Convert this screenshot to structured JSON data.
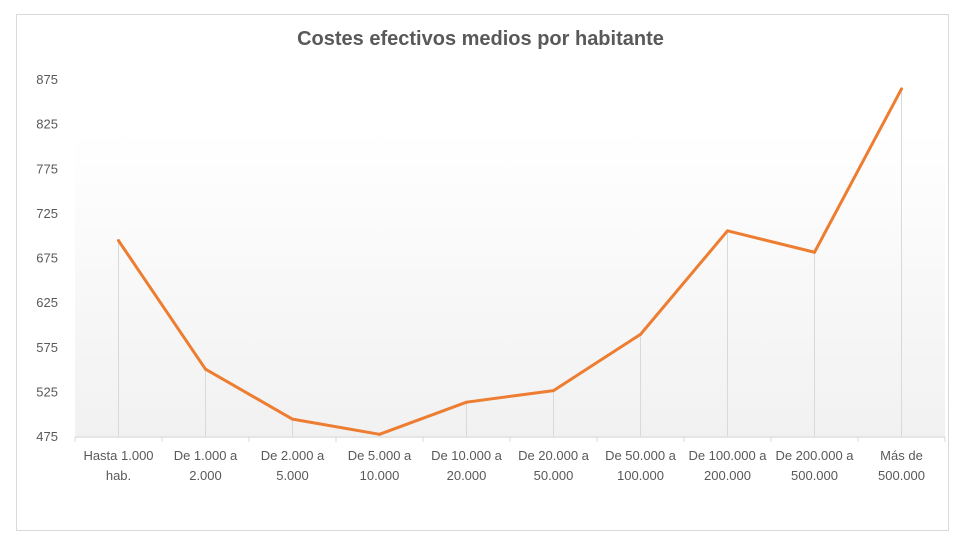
{
  "chart_data": {
    "type": "line",
    "title": "Costes efectivos medios por habitante",
    "categories": [
      [
        "Hasta 1.000",
        "hab."
      ],
      [
        "De 1.000 a",
        "2.000"
      ],
      [
        "De 2.000 a",
        "5.000"
      ],
      [
        "De 5.000 a",
        "10.000"
      ],
      [
        "De 10.000 a",
        "20.000"
      ],
      [
        "De 20.000 a",
        "50.000"
      ],
      [
        "De 50.000 a",
        "100.000"
      ],
      [
        "De 100.000 a",
        "200.000"
      ],
      [
        "De 200.000 a",
        "500.000"
      ],
      [
        "Más de",
        "500.000"
      ]
    ],
    "series": [
      {
        "values": [
          695,
          551,
          495,
          478,
          514,
          527,
          590,
          706,
          682,
          865
        ],
        "color": "#ed7d31"
      }
    ],
    "ylim": [
      475,
      875
    ],
    "yticks": [
      475,
      525,
      575,
      625,
      675,
      725,
      775,
      825,
      875
    ],
    "xlabel": "",
    "ylabel": "",
    "grid": false,
    "drop_lines": true
  }
}
